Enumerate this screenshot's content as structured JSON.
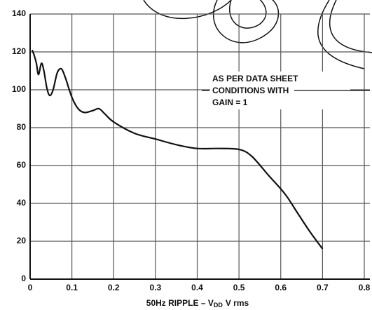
{
  "chart_data": {
    "type": "line",
    "x": [
      0.005,
      0.01,
      0.015,
      0.02,
      0.027,
      0.033,
      0.04,
      0.047,
      0.055,
      0.065,
      0.075,
      0.085,
      0.1,
      0.115,
      0.13,
      0.15,
      0.165,
      0.18,
      0.2,
      0.25,
      0.3,
      0.35,
      0.4,
      0.45,
      0.5,
      0.53,
      0.57,
      0.61,
      0.64,
      0.67,
      0.7
    ],
    "values": [
      121,
      118,
      114,
      108,
      114,
      110,
      101,
      97,
      100,
      109,
      111,
      106,
      96,
      90,
      88,
      89,
      90,
      87,
      83,
      77,
      74,
      71,
      69,
      69,
      68.5,
      65,
      55,
      45,
      35,
      25,
      16
    ],
    "color": "#111",
    "xlim": [
      0,
      0.8
    ],
    "xticks": [
      0,
      0.1,
      0.2,
      0.3,
      0.4,
      0.5,
      0.6,
      0.7,
      0.8
    ],
    "ylim": [
      0,
      140
    ],
    "yticks": [
      0,
      20,
      40,
      60,
      80,
      100,
      120,
      140
    ],
    "grid": true,
    "xlabel": [
      "50Hz RIPPLE – V",
      "DD",
      "V rms"
    ],
    "annotation": [
      "AS PER DATA SHEET",
      "CONDITIONS WITH",
      "GAIN = 1"
    ]
  }
}
